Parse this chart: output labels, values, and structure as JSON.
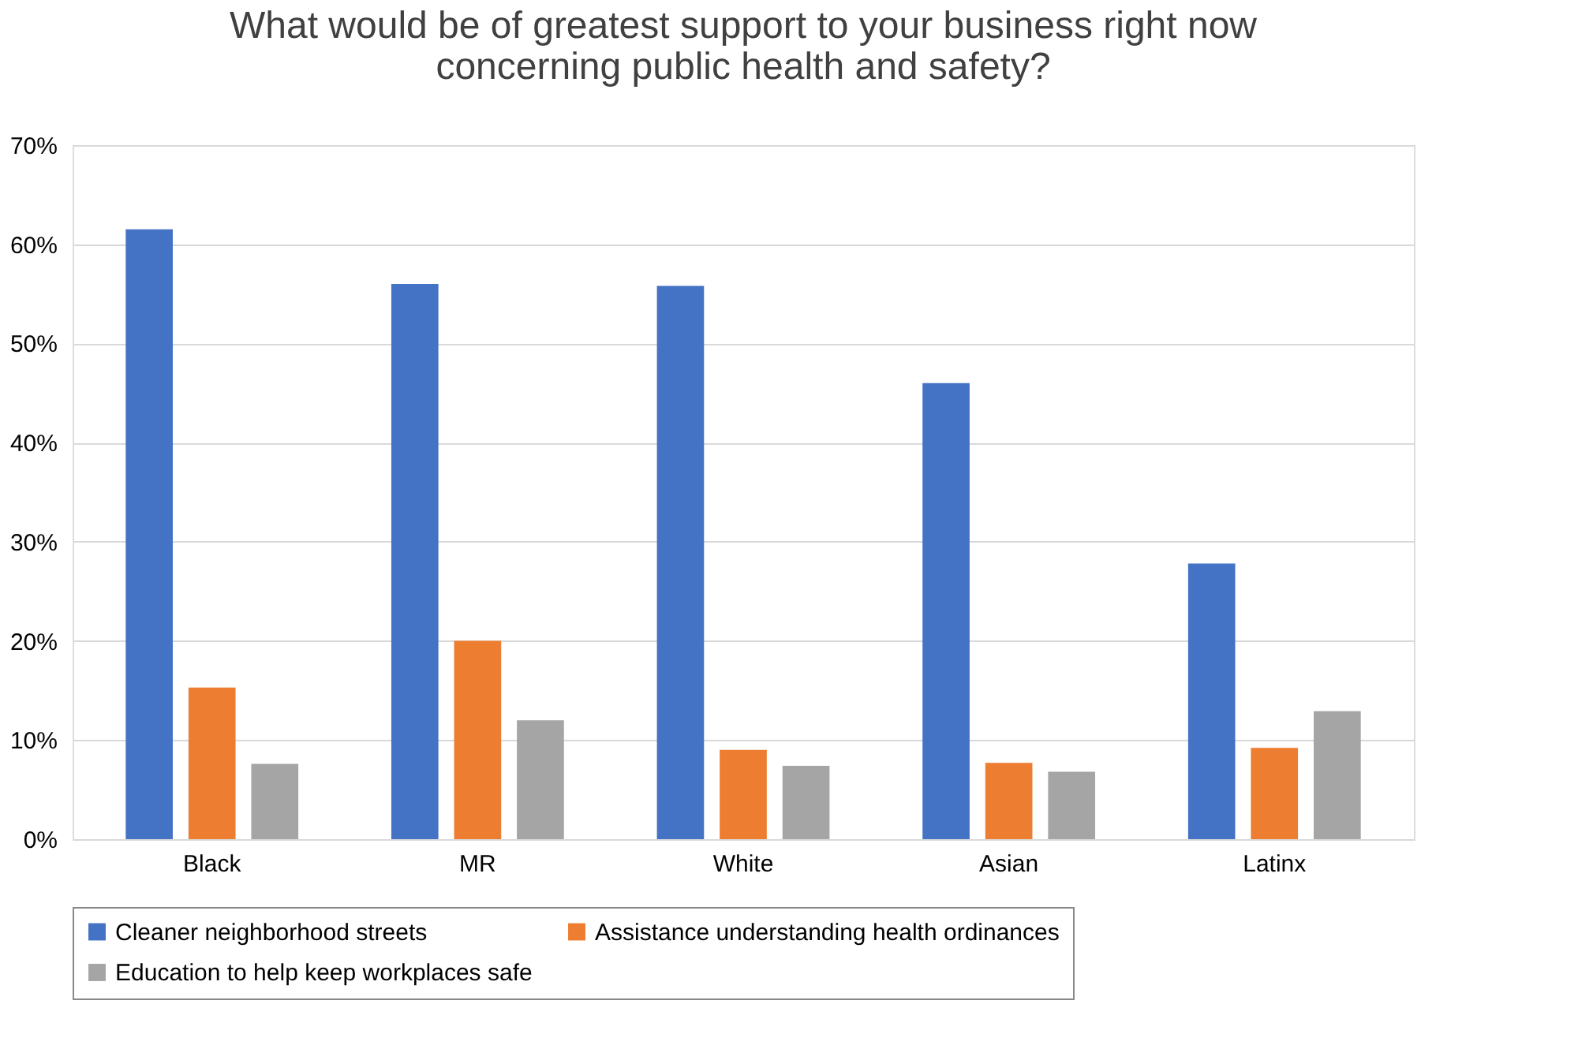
{
  "chart_data": {
    "type": "bar",
    "title": "What would be of greatest support to your business right now concerning public health and safety?",
    "categories": [
      "Black",
      "MR",
      "White",
      "Asian",
      "Latinx"
    ],
    "series": [
      {
        "name": "Cleaner neighborhood streets",
        "color": "#4472c4",
        "values": [
          61.5,
          56,
          55.8,
          46,
          27.8
        ]
      },
      {
        "name": "Assistance understanding health ordinances",
        "color": "#ed7d31",
        "values": [
          15.3,
          20,
          9,
          7.7,
          9.2
        ]
      },
      {
        "name": "Education to help keep workplaces safe",
        "color": "#a5a5a5",
        "values": [
          7.6,
          12,
          7.4,
          6.8,
          12.9
        ]
      }
    ],
    "ylim": [
      0,
      70
    ],
    "yticks": [
      {
        "value": 0,
        "label": "0%"
      },
      {
        "value": 10,
        "label": "10%"
      },
      {
        "value": 20,
        "label": "20%"
      },
      {
        "value": 30,
        "label": "30%"
      },
      {
        "value": 40,
        "label": "40%"
      },
      {
        "value": 50,
        "label": "50%"
      },
      {
        "value": 60,
        "label": "60%"
      },
      {
        "value": 70,
        "label": "70%"
      }
    ],
    "grid": "y",
    "legend": "bottom"
  }
}
